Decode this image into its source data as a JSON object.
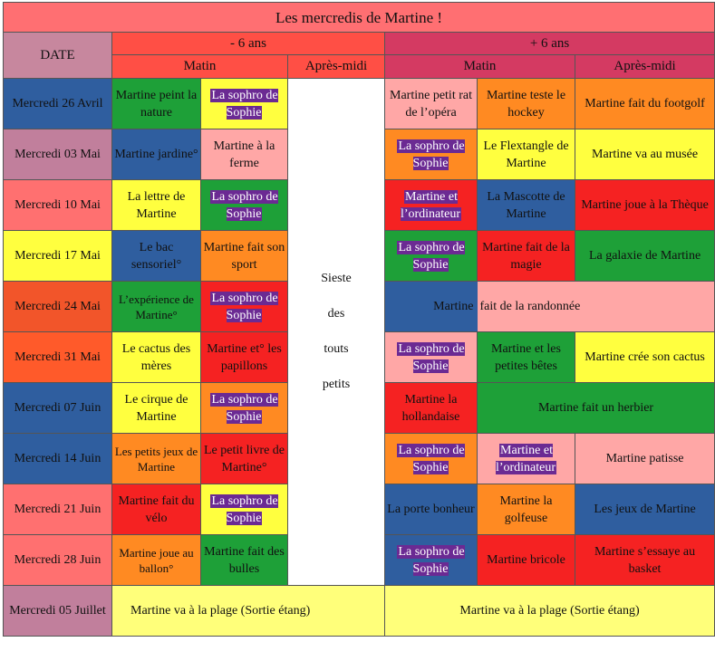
{
  "title": "Les mercredis de Martine !",
  "headers": {
    "date": "DATE",
    "group_young": "- 6 ans",
    "group_old": "+ 6 ans",
    "matin": "Matin",
    "apres_midi": "Après-midi"
  },
  "sieste": [
    "Sieste",
    "des",
    "touts",
    "petits"
  ],
  "rows": [
    {
      "date": "Mercredi 26 Avril",
      "y1": "Martine peint la nature",
      "y2": "La sophro de Sophie",
      "o1": "Martine petit rat de l’opéra",
      "o2": "Martine teste le hockey",
      "o3": "Martine fait du footgolf"
    },
    {
      "date": "Mercredi 03 Mai",
      "y1": "Martine jardine°",
      "y2": "Martine à la ferme",
      "o1": "La sophro de Sophie",
      "o2": "Le Flextangle de Martine",
      "o3": "Martine va au musée"
    },
    {
      "date": "Mercredi 10 Mai",
      "y1": "La lettre de Martine",
      "y2": "La sophro de Sophie",
      "o1": "Martine et l’ordinateur",
      "o2": "La Mascotte de Martine",
      "o3": "Martine joue à la Thèque"
    },
    {
      "date": "Mercredi 17 Mai",
      "y1": "Le bac sensoriel°",
      "y2": "Martine fait son sport",
      "o1": "La sophro de Sophie",
      "o2": "Martine fait de la magie",
      "o3": "La galaxie de Martine"
    },
    {
      "date": "Mercredi 24 Mai",
      "y1": "L’expérience de Martine°",
      "y2": "La sophro de Sophie",
      "o1": "Martine",
      "o2": "fait de la randonnée"
    },
    {
      "date": "Mercredi 31 Mai",
      "y1": "Le cactus des mères",
      "y2": "Martine et° les papillons",
      "o1": "La sophro de Sophie",
      "o2": "Martine et les petites bêtes",
      "o3": "Martine crée son cactus"
    },
    {
      "date": "Mercredi 07 Juin",
      "y1": "Le cirque de Martine",
      "y2": "La sophro de Sophie",
      "o1": "Martine la hollandaise",
      "o2": "Martine fait un herbier"
    },
    {
      "date": "Mercredi 14 Juin",
      "y1": "Les petits jeux de Martine",
      "y2": "Le petit livre de Martine°",
      "o1": "La sophro de Sophie",
      "o2": "Martine et l’ordinateur",
      "o3": "Martine  patisse"
    },
    {
      "date": "Mercredi 21 Juin",
      "y1": "Martine fait du vélo",
      "y2": "La sophro de Sophie",
      "o1": "La porte bonheur",
      "o2": "Martine la golfeuse",
      "o3": "Les jeux de Martine"
    },
    {
      "date": "Mercredi 28 Juin",
      "y1": "Martine joue au ballon°",
      "y2": "Martine fait des bulles",
      "o1": "La sophro de Sophie",
      "o2": "Martine bricole",
      "o3": "Martine s’essaye au basket"
    },
    {
      "date": "Mercredi 05 Juillet",
      "young": "Martine va à la plage (Sortie étang)",
      "old": "Martine va à la plage (Sortie étang)"
    }
  ]
}
